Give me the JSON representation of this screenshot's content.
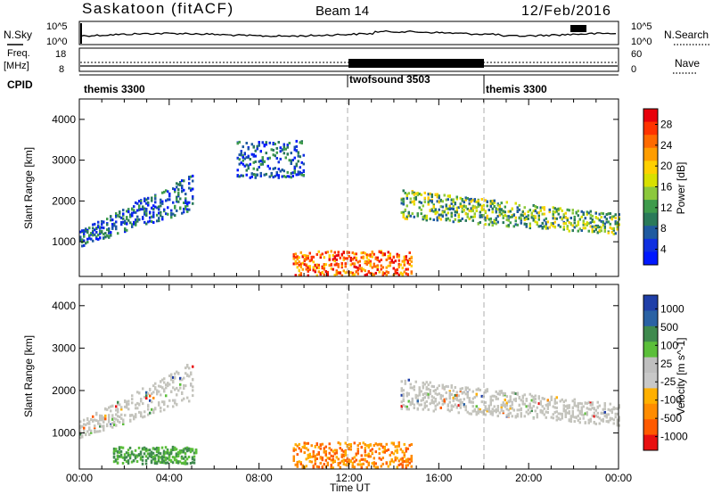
{
  "header": {
    "title": "Saskatoon (fitACF)",
    "beam": "Beam 14",
    "date": "12/Feb/2016"
  },
  "top_panels": {
    "nsky_label": "N.Sky",
    "nsky_top_tick": "10^5",
    "nsky_bottom_tick": "10^0",
    "nsearch_label": "N.Search",
    "nsearch_top_tick": "10^5",
    "nsearch_bottom_tick": "10^0",
    "freq_label": "Freq.",
    "freq_unit": "[MHz]",
    "freq_top_tick": "18",
    "freq_bottom_tick": "8",
    "nave_label": "Nave",
    "nave_top_tick": "60",
    "nave_bottom_tick": "0",
    "cpid_label": "CPID"
  },
  "cpid_segments": [
    {
      "name": "themis 3300",
      "start_hour": 0.0,
      "end_hour": 12.0
    },
    {
      "name": "twofsound 3503",
      "start_hour": 12.0,
      "end_hour": 18.0
    },
    {
      "name": "themis 3300",
      "start_hour": 18.0,
      "end_hour": 24.0
    }
  ],
  "colorbars": {
    "power": {
      "label": "Power [dB]",
      "ticks": [
        "28",
        "24",
        "20",
        "16",
        "12",
        "8",
        "4"
      ],
      "colors": [
        "#e8000b",
        "#ff3300",
        "#ff6a00",
        "#ff9d00",
        "#ffd000",
        "#d8e000",
        "#8cc83c",
        "#3f9b4c",
        "#2a7a5a",
        "#1f5aa0",
        "#1030e0",
        "#0018ff"
      ]
    },
    "velocity": {
      "label": "Velocity  [m s^-1]",
      "ticks": [
        "1000",
        "500",
        "100",
        "25",
        "-25",
        "-100",
        "-500",
        "-1000"
      ],
      "colors": [
        "#1f3fa8",
        "#2a62a4",
        "#3f8a4e",
        "#5bbf3a",
        "#bfbfbf",
        "#c8c8c8",
        "#ffb000",
        "#ff8c00",
        "#ff5a00",
        "#e81010"
      ]
    }
  },
  "chart_data": [
    {
      "type": "heatmap",
      "panel": "power",
      "ylabel": "Slant Range [km]",
      "y_ticks": [
        "1000",
        "2000",
        "3000",
        "4000"
      ],
      "ylim": [
        150,
        4500
      ],
      "xlim": [
        0,
        24
      ],
      "echo_regions": [
        {
          "start_hour": 0.0,
          "end_hour": 5.0,
          "range_start_km": 1000,
          "range_end_km": 2700,
          "description": "slanting band rising from ~1000 km to ~2600 km, mostly low power"
        },
        {
          "start_hour": 7.0,
          "end_hour": 10.0,
          "range_start_km": 2600,
          "range_end_km": 3500,
          "description": "patch near 3000 km, low power"
        },
        {
          "start_hour": 9.5,
          "end_hour": 14.8,
          "range_start_km": 200,
          "range_end_km": 800,
          "description": "near-range band with high power up to ~30 dB near 12:00"
        },
        {
          "start_hour": 14.3,
          "end_hour": 24.0,
          "range_start_km": 1200,
          "range_end_km": 2500,
          "description": "broad band descending from ~2000 km to ~1300 km, moderate power 12-20 dB"
        }
      ]
    },
    {
      "type": "heatmap",
      "panel": "velocity",
      "ylabel": "Slant Range [km]",
      "y_ticks": [
        "1000",
        "2000",
        "3000",
        "4000"
      ],
      "ylim": [
        150,
        4500
      ],
      "xlim": [
        0,
        24
      ],
      "xlabel": "Time UT",
      "x_ticks": [
        "00:00",
        "04:00",
        "08:00",
        "12:00",
        "16:00",
        "20:00",
        "00:00"
      ],
      "echo_regions": [
        {
          "start_hour": 0.0,
          "end_hour": 5.0,
          "range_start_km": 1000,
          "range_end_km": 2700,
          "description": "mostly near-zero velocity (grey ground scatter)"
        },
        {
          "start_hour": 1.5,
          "end_hour": 5.2,
          "range_start_km": 300,
          "range_end_km": 700,
          "description": "low-velocity green echoes"
        },
        {
          "start_hour": 9.5,
          "end_hour": 14.8,
          "range_start_km": 200,
          "range_end_km": 800,
          "description": "orange, negative velocity ~-100 to -500 m/s"
        },
        {
          "start_hour": 14.3,
          "end_hour": 24.0,
          "range_start_km": 1200,
          "range_end_km": 2500,
          "description": "grey near-zero velocity band"
        }
      ]
    }
  ]
}
